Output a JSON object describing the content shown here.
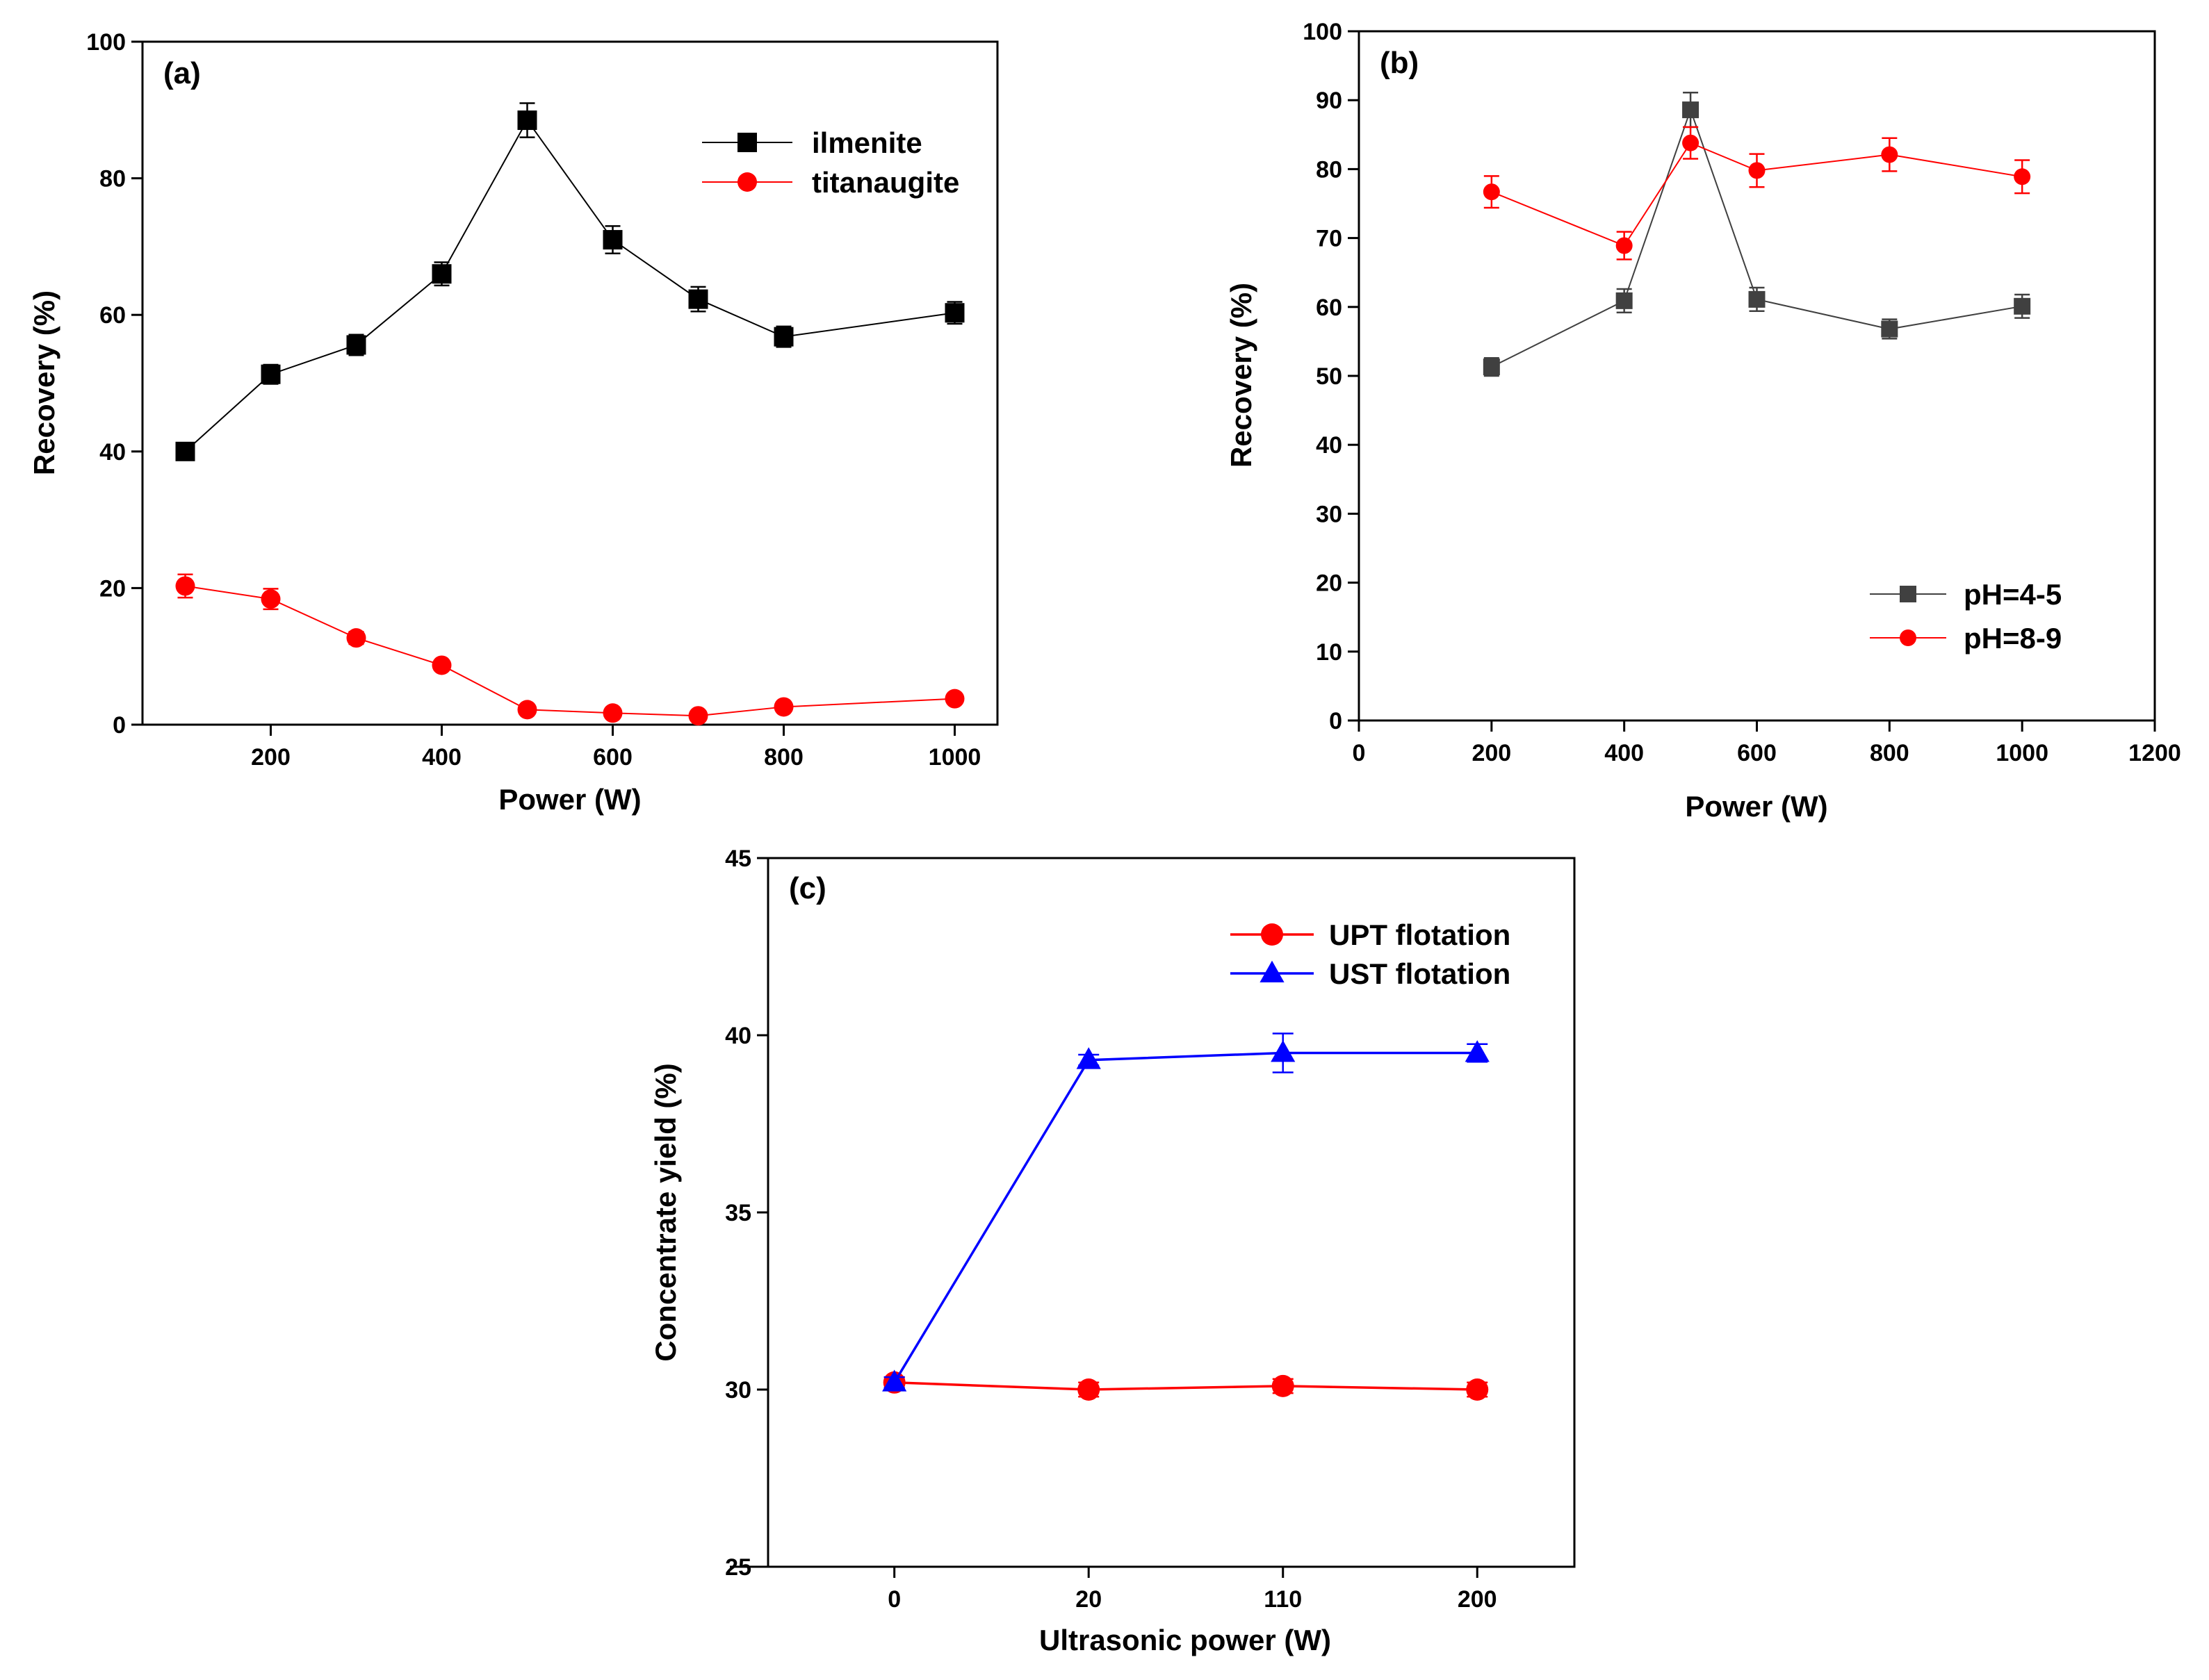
{
  "chart_data": [
    {
      "type": "line",
      "panel_label": "(a)",
      "xlabel": "Power (W)",
      "ylabel": "Recovery (%)",
      "xlim": [
        50,
        1050
      ],
      "ylim": [
        0,
        100
      ],
      "xticks": [
        200,
        400,
        600,
        800,
        1000
      ],
      "yticks": [
        0,
        20,
        40,
        60,
        80,
        100
      ],
      "legend_position": "top-right",
      "series": [
        {
          "name": "ilmenite",
          "color": "#000000",
          "marker": "square",
          "x": [
            100,
            200,
            300,
            400,
            500,
            600,
            700,
            800,
            1000
          ],
          "values": [
            40.0,
            51.3,
            55.6,
            66.0,
            88.5,
            71.0,
            62.3,
            56.8,
            60.3
          ],
          "errors": [
            0.6,
            1.4,
            1.5,
            1.7,
            2.5,
            2.0,
            1.8,
            1.5,
            1.6
          ]
        },
        {
          "name": "titanaugite",
          "color": "#ff0000",
          "marker": "circle",
          "x": [
            100,
            200,
            300,
            400,
            500,
            600,
            700,
            800,
            1000
          ],
          "values": [
            20.3,
            18.4,
            12.7,
            8.7,
            2.2,
            1.7,
            1.3,
            2.6,
            3.8
          ],
          "errors": [
            1.7,
            1.5,
            0.9,
            0.5,
            0.4,
            0.3,
            0.3,
            0.4,
            0.4
          ]
        }
      ]
    },
    {
      "type": "line",
      "panel_label": "(b)",
      "xlabel": "Power (W)",
      "ylabel": "Recovery (%)",
      "xlim": [
        0,
        1200
      ],
      "ylim": [
        0,
        100
      ],
      "xticks": [
        0,
        200,
        400,
        600,
        800,
        1000,
        1200
      ],
      "yticks": [
        0,
        10,
        20,
        30,
        40,
        50,
        60,
        70,
        80,
        90,
        100
      ],
      "legend_position": "bottom-right",
      "series": [
        {
          "name": "pH=4-5",
          "color": "#404040",
          "marker": "square",
          "x": [
            200,
            400,
            500,
            600,
            800,
            1000
          ],
          "values": [
            51.3,
            60.9,
            88.6,
            61.1,
            56.8,
            60.1
          ],
          "errors": [
            1.3,
            1.7,
            2.5,
            1.7,
            1.4,
            1.7
          ]
        },
        {
          "name": "pH=8-9",
          "color": "#ff0000",
          "marker": "circle",
          "x": [
            200,
            400,
            500,
            600,
            800,
            1000
          ],
          "values": [
            76.7,
            68.9,
            83.8,
            79.8,
            82.1,
            78.9
          ],
          "errors": [
            2.3,
            2.0,
            2.3,
            2.4,
            2.4,
            2.4
          ]
        }
      ]
    },
    {
      "type": "line",
      "panel_label": "(c)",
      "xlabel": "Ultrasonic power (W)",
      "ylabel": "Concentrate yield  (%)",
      "x_categories": [
        "0",
        "20",
        "110",
        "200"
      ],
      "ylim": [
        25,
        45
      ],
      "yticks": [
        25,
        30,
        35,
        40,
        45
      ],
      "legend_position": "top-right",
      "series": [
        {
          "name": "UPT flotation",
          "color": "#ff0000",
          "marker": "circle",
          "values": [
            30.2,
            30.0,
            30.1,
            30.0
          ],
          "errors": [
            0.15,
            0.2,
            0.2,
            0.2
          ]
        },
        {
          "name": "UST flotation",
          "color": "#0000ff",
          "marker": "triangle",
          "values": [
            30.2,
            39.3,
            39.5,
            39.5
          ],
          "errors": [
            0.15,
            0.15,
            0.55,
            0.25
          ]
        }
      ]
    }
  ]
}
